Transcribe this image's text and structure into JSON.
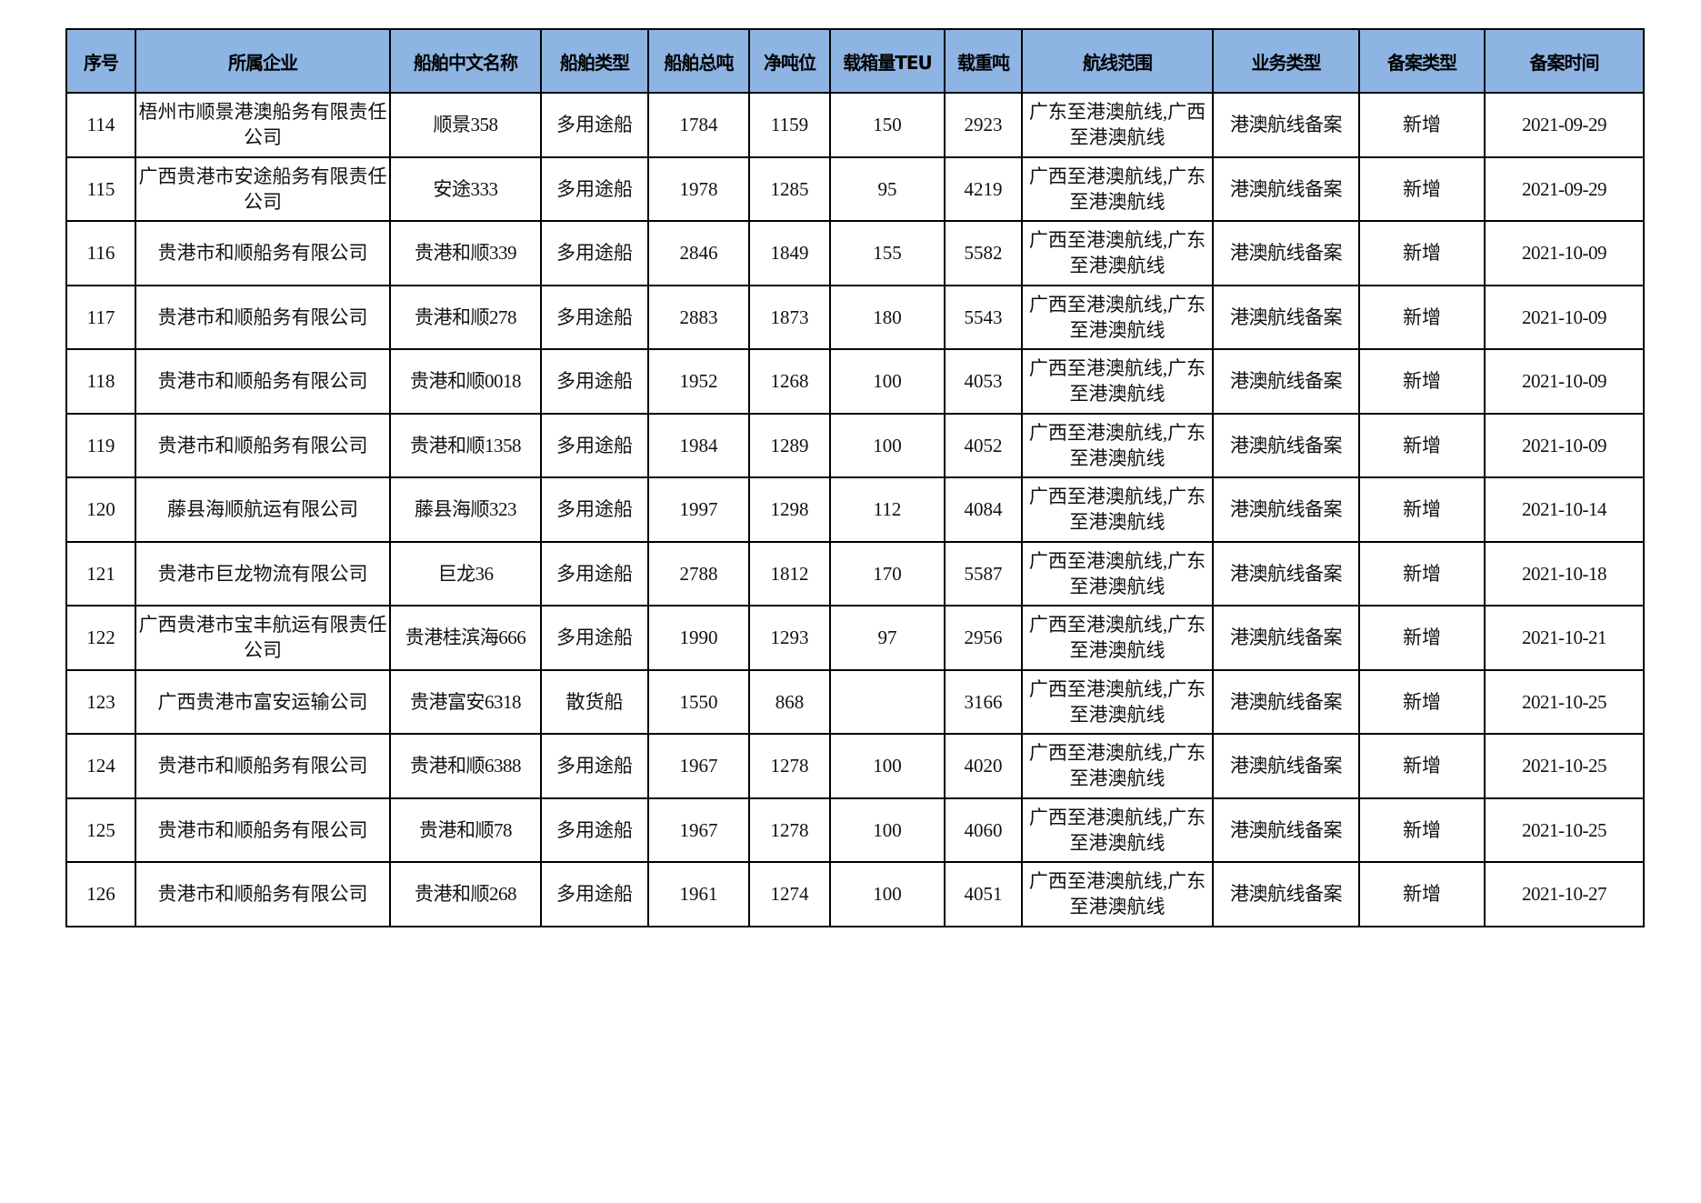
{
  "table": {
    "headers": [
      "序号",
      "所属企业",
      "船舶中文名称",
      "船舶类型",
      "船舶总吨",
      "净吨位",
      "载箱量TEU",
      "载重吨",
      "航线范围",
      "业务类型",
      "备案类型",
      "备案时间"
    ],
    "rows": [
      [
        "114",
        "梧州市顺景港澳船务有限责任公司",
        "顺景358",
        "多用途船",
        "1784",
        "1159",
        "150",
        "2923",
        "广东至港澳航线,广西至港澳航线",
        "港澳航线备案",
        "新增",
        "2021-09-29"
      ],
      [
        "115",
        "广西贵港市安途船务有限责任公司",
        "安途333",
        "多用途船",
        "1978",
        "1285",
        "95",
        "4219",
        "广西至港澳航线,广东至港澳航线",
        "港澳航线备案",
        "新增",
        "2021-09-29"
      ],
      [
        "116",
        "贵港市和顺船务有限公司",
        "贵港和顺339",
        "多用途船",
        "2846",
        "1849",
        "155",
        "5582",
        "广西至港澳航线,广东至港澳航线",
        "港澳航线备案",
        "新增",
        "2021-10-09"
      ],
      [
        "117",
        "贵港市和顺船务有限公司",
        "贵港和顺278",
        "多用途船",
        "2883",
        "1873",
        "180",
        "5543",
        "广西至港澳航线,广东至港澳航线",
        "港澳航线备案",
        "新增",
        "2021-10-09"
      ],
      [
        "118",
        "贵港市和顺船务有限公司",
        "贵港和顺0018",
        "多用途船",
        "1952",
        "1268",
        "100",
        "4053",
        "广西至港澳航线,广东至港澳航线",
        "港澳航线备案",
        "新增",
        "2021-10-09"
      ],
      [
        "119",
        "贵港市和顺船务有限公司",
        "贵港和顺1358",
        "多用途船",
        "1984",
        "1289",
        "100",
        "4052",
        "广西至港澳航线,广东至港澳航线",
        "港澳航线备案",
        "新增",
        "2021-10-09"
      ],
      [
        "120",
        "藤县海顺航运有限公司",
        "藤县海顺323",
        "多用途船",
        "1997",
        "1298",
        "112",
        "4084",
        "广西至港澳航线,广东至港澳航线",
        "港澳航线备案",
        "新增",
        "2021-10-14"
      ],
      [
        "121",
        "贵港市巨龙物流有限公司",
        "巨龙36",
        "多用途船",
        "2788",
        "1812",
        "170",
        "5587",
        "广西至港澳航线,广东至港澳航线",
        "港澳航线备案",
        "新增",
        "2021-10-18"
      ],
      [
        "122",
        "广西贵港市宝丰航运有限责任公司",
        "贵港桂滨海666",
        "多用途船",
        "1990",
        "1293",
        "97",
        "2956",
        "广西至港澳航线,广东至港澳航线",
        "港澳航线备案",
        "新增",
        "2021-10-21"
      ],
      [
        "123",
        "广西贵港市富安运输公司",
        "贵港富安6318",
        "散货船",
        "1550",
        "868",
        "",
        "3166",
        "广西至港澳航线,广东至港澳航线",
        "港澳航线备案",
        "新增",
        "2021-10-25"
      ],
      [
        "124",
        "贵港市和顺船务有限公司",
        "贵港和顺6388",
        "多用途船",
        "1967",
        "1278",
        "100",
        "4020",
        "广西至港澳航线,广东至港澳航线",
        "港澳航线备案",
        "新增",
        "2021-10-25"
      ],
      [
        "125",
        "贵港市和顺船务有限公司",
        "贵港和顺78",
        "多用途船",
        "1967",
        "1278",
        "100",
        "4060",
        "广西至港澳航线,广东至港澳航线",
        "港澳航线备案",
        "新增",
        "2021-10-25"
      ],
      [
        "126",
        "贵港市和顺船务有限公司",
        "贵港和顺268",
        "多用途船",
        "1961",
        "1274",
        "100",
        "4051",
        "广西至港澳航线,广东至港澳航线",
        "港澳航线备案",
        "新增",
        "2021-10-27"
      ]
    ]
  },
  "colors": {
    "header_bg": "#8db4e2"
  }
}
